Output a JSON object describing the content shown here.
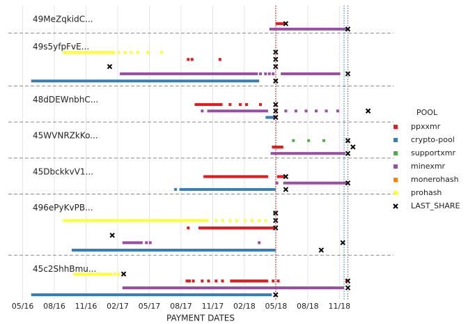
{
  "chart_data": {
    "type": "timeline",
    "x_label": "PAYMENT DATES",
    "xlim": [
      2016.22,
      2019.26
    ],
    "xticks": [
      {
        "value": 2016.333,
        "label": "05/16"
      },
      {
        "value": 2016.583,
        "label": "08/16"
      },
      {
        "value": 2016.833,
        "label": "11/16"
      },
      {
        "value": 2017.083,
        "label": "02/17"
      },
      {
        "value": 2017.333,
        "label": "05/17"
      },
      {
        "value": 2017.583,
        "label": "08/17"
      },
      {
        "value": 2017.833,
        "label": "11/17"
      },
      {
        "value": 2018.083,
        "label": "02/18"
      },
      {
        "value": 2018.333,
        "label": "05/18"
      },
      {
        "value": 2018.583,
        "label": "08/18"
      },
      {
        "value": 2018.833,
        "label": "11/18"
      }
    ],
    "grid": true,
    "reference_lines": [
      {
        "x": 2018.33,
        "color": "#e41a1c"
      },
      {
        "x": 2018.87,
        "color": "#377eb8"
      },
      {
        "x": 2018.9,
        "color": "#984ea3"
      }
    ],
    "legend": {
      "title": "POOL",
      "position": "right",
      "entries": [
        {
          "name": "ppxxmr",
          "color": "#e41a1c"
        },
        {
          "name": "crypto-pool",
          "color": "#377eb8"
        },
        {
          "name": "supportxmr",
          "color": "#4daf4a"
        },
        {
          "name": "minexmr",
          "color": "#984ea3"
        },
        {
          "name": "monerohash",
          "color": "#ff7f00"
        },
        {
          "name": "prohash",
          "color": "#ffff33"
        },
        {
          "name": "LAST_SHARE",
          "color": "#000000",
          "marker": "x"
        }
      ]
    },
    "groups": [
      {
        "label": "49MeZqkidC...",
        "lanes": [
          {
            "pool": "ppxxmr",
            "segments": [
              [
                2018.33,
                2018.41
              ]
            ],
            "last_shares": [
              2018.41
            ]
          },
          {
            "pool": "minexmr",
            "segments": [
              [
                2018.28,
                2018.9
              ]
            ],
            "last_shares": [
              2018.9
            ]
          }
        ]
      },
      {
        "label": "49s5yfpFvE...",
        "lanes": [
          {
            "pool": "prohash",
            "segments": [
              [
                2016.65,
                2017.06
              ]
            ],
            "points": [
              2017.09,
              2017.14,
              2017.19,
              2017.24,
              2017.32,
              2017.43
            ],
            "last_shares": [
              2018.33
            ]
          },
          {
            "pool": "ppxxmr",
            "points": [
              2017.64,
              2017.67,
              2017.89
            ],
            "last_shares": [
              2018.33
            ]
          },
          {
            "pool": "LAST_SHARE",
            "points": [
              2017.02,
              2018.33
            ]
          },
          {
            "pool": "minexmr",
            "segments": [
              [
                2017.1,
                2018.19
              ],
              [
                2018.37,
                2018.84
              ]
            ],
            "points": [
              2018.21,
              2018.25,
              2018.28,
              2018.31
            ],
            "last_shares": [
              2018.9
            ]
          },
          {
            "pool": "crypto-pool",
            "segments": [
              [
                2016.4,
                2018.2
              ]
            ],
            "last_shares": [
              2018.33
            ]
          }
        ]
      },
      {
        "label": "48dDEWnbhC...",
        "lanes": [
          {
            "pool": "ppxxmr",
            "segments": [
              [
                2017.69,
                2017.91
              ]
            ],
            "points": [
              2017.97,
              2018.05,
              2018.1,
              2018.21
            ],
            "last_shares": [
              2018.33
            ]
          },
          {
            "pool": "minexmr",
            "segments": [
              [
                2017.79,
                2018.27
              ]
            ],
            "points": [
              2017.75,
              2018.41,
              2018.49,
              2018.57,
              2018.65,
              2018.73,
              2018.82
            ],
            "last_shares": [
              2018.33,
              2019.06
            ]
          },
          {
            "pool": "crypto-pool",
            "segments": [
              [
                2018.25,
                2018.33
              ]
            ],
            "last_shares": [
              2018.33
            ]
          }
        ]
      },
      {
        "label": "45WVNRZkKo...",
        "lanes": [
          {
            "pool": "supportxmr",
            "points": [
              2018.47,
              2018.59,
              2018.71
            ],
            "last_shares": [
              2018.9
            ]
          },
          {
            "pool": "ppxxmr",
            "segments": [
              [
                2018.3,
                2018.39
              ]
            ],
            "last_shares": [
              2018.94
            ]
          },
          {
            "pool": "minexmr",
            "segments": [
              [
                2018.29,
                2018.88
              ]
            ],
            "last_shares": [
              2018.9
            ]
          }
        ]
      },
      {
        "label": "45DbckkvV1...",
        "lanes": [
          {
            "pool": "ppxxmr",
            "segments": [
              [
                2017.76,
                2018.27
              ],
              [
                2018.34,
                2018.41
              ]
            ],
            "last_shares": [
              2018.41
            ]
          },
          {
            "pool": "minexmr",
            "segments": [
              [
                2018.39,
                2018.9
              ]
            ],
            "points": [
              2018.34
            ],
            "last_shares": [
              2018.9
            ]
          },
          {
            "pool": "crypto-pool",
            "segments": [
              [
                2017.57,
                2018.33
              ]
            ],
            "points": [
              2017.54
            ],
            "last_shares": [
              2018.41
            ]
          }
        ]
      },
      {
        "label": "496ePyKvPB...",
        "lanes": [
          {
            "pool": "supportxmr",
            "segments": [
              [
                2018.31,
                2018.33
              ]
            ],
            "last_shares": [
              2018.33
            ]
          },
          {
            "pool": "prohash",
            "segments": [
              [
                2016.65,
                2017.8
              ]
            ],
            "points": [
              2017.86,
              2017.91,
              2017.97,
              2018.02,
              2018.09,
              2018.14,
              2018.2,
              2018.25
            ],
            "last_shares": [
              2018.33
            ]
          },
          {
            "pool": "ppxxmr",
            "segments": [
              [
                2017.72,
                2018.32
              ]
            ],
            "points": [
              2017.64
            ],
            "last_shares": [
              2018.33
            ]
          },
          {
            "pool": "LAST_SHARE",
            "points": [
              2017.04
            ]
          },
          {
            "pool": "minexmr",
            "segments": [
              [
                2017.12,
                2017.28
              ]
            ],
            "points": [
              2017.31,
              2017.34,
              2018.2
            ],
            "last_shares": [
              2018.86
            ]
          },
          {
            "pool": "crypto-pool",
            "segments": [
              [
                2016.72,
                2018.33
              ]
            ],
            "last_shares": [
              2018.69
            ]
          }
        ]
      },
      {
        "label": "45c2ShhBmu...",
        "lanes": [
          {
            "pool": "prohash",
            "segments": [
              [
                2016.73,
                2017.04
              ]
            ],
            "points": [
              2017.06,
              2017.09
            ],
            "last_shares": [
              2017.13
            ]
          },
          {
            "pool": "ppxxmr",
            "segments": [
              [
                2017.97,
                2018.27
              ],
              [
                2018.88,
                2018.9
              ]
            ],
            "points": [
              2017.63,
              2017.65,
              2017.68,
              2017.75,
              2017.8,
              2017.86,
              2017.91,
              2018.31,
              2018.35
            ],
            "last_shares": [
              2018.9
            ]
          },
          {
            "pool": "minexmr",
            "segments": [
              [
                2017.12,
                2018.87
              ]
            ],
            "last_shares": [
              2018.9
            ]
          },
          {
            "pool": "crypto-pool",
            "segments": [
              [
                2016.4,
                2018.3
              ]
            ],
            "last_shares": [
              2018.33
            ]
          }
        ]
      }
    ]
  }
}
